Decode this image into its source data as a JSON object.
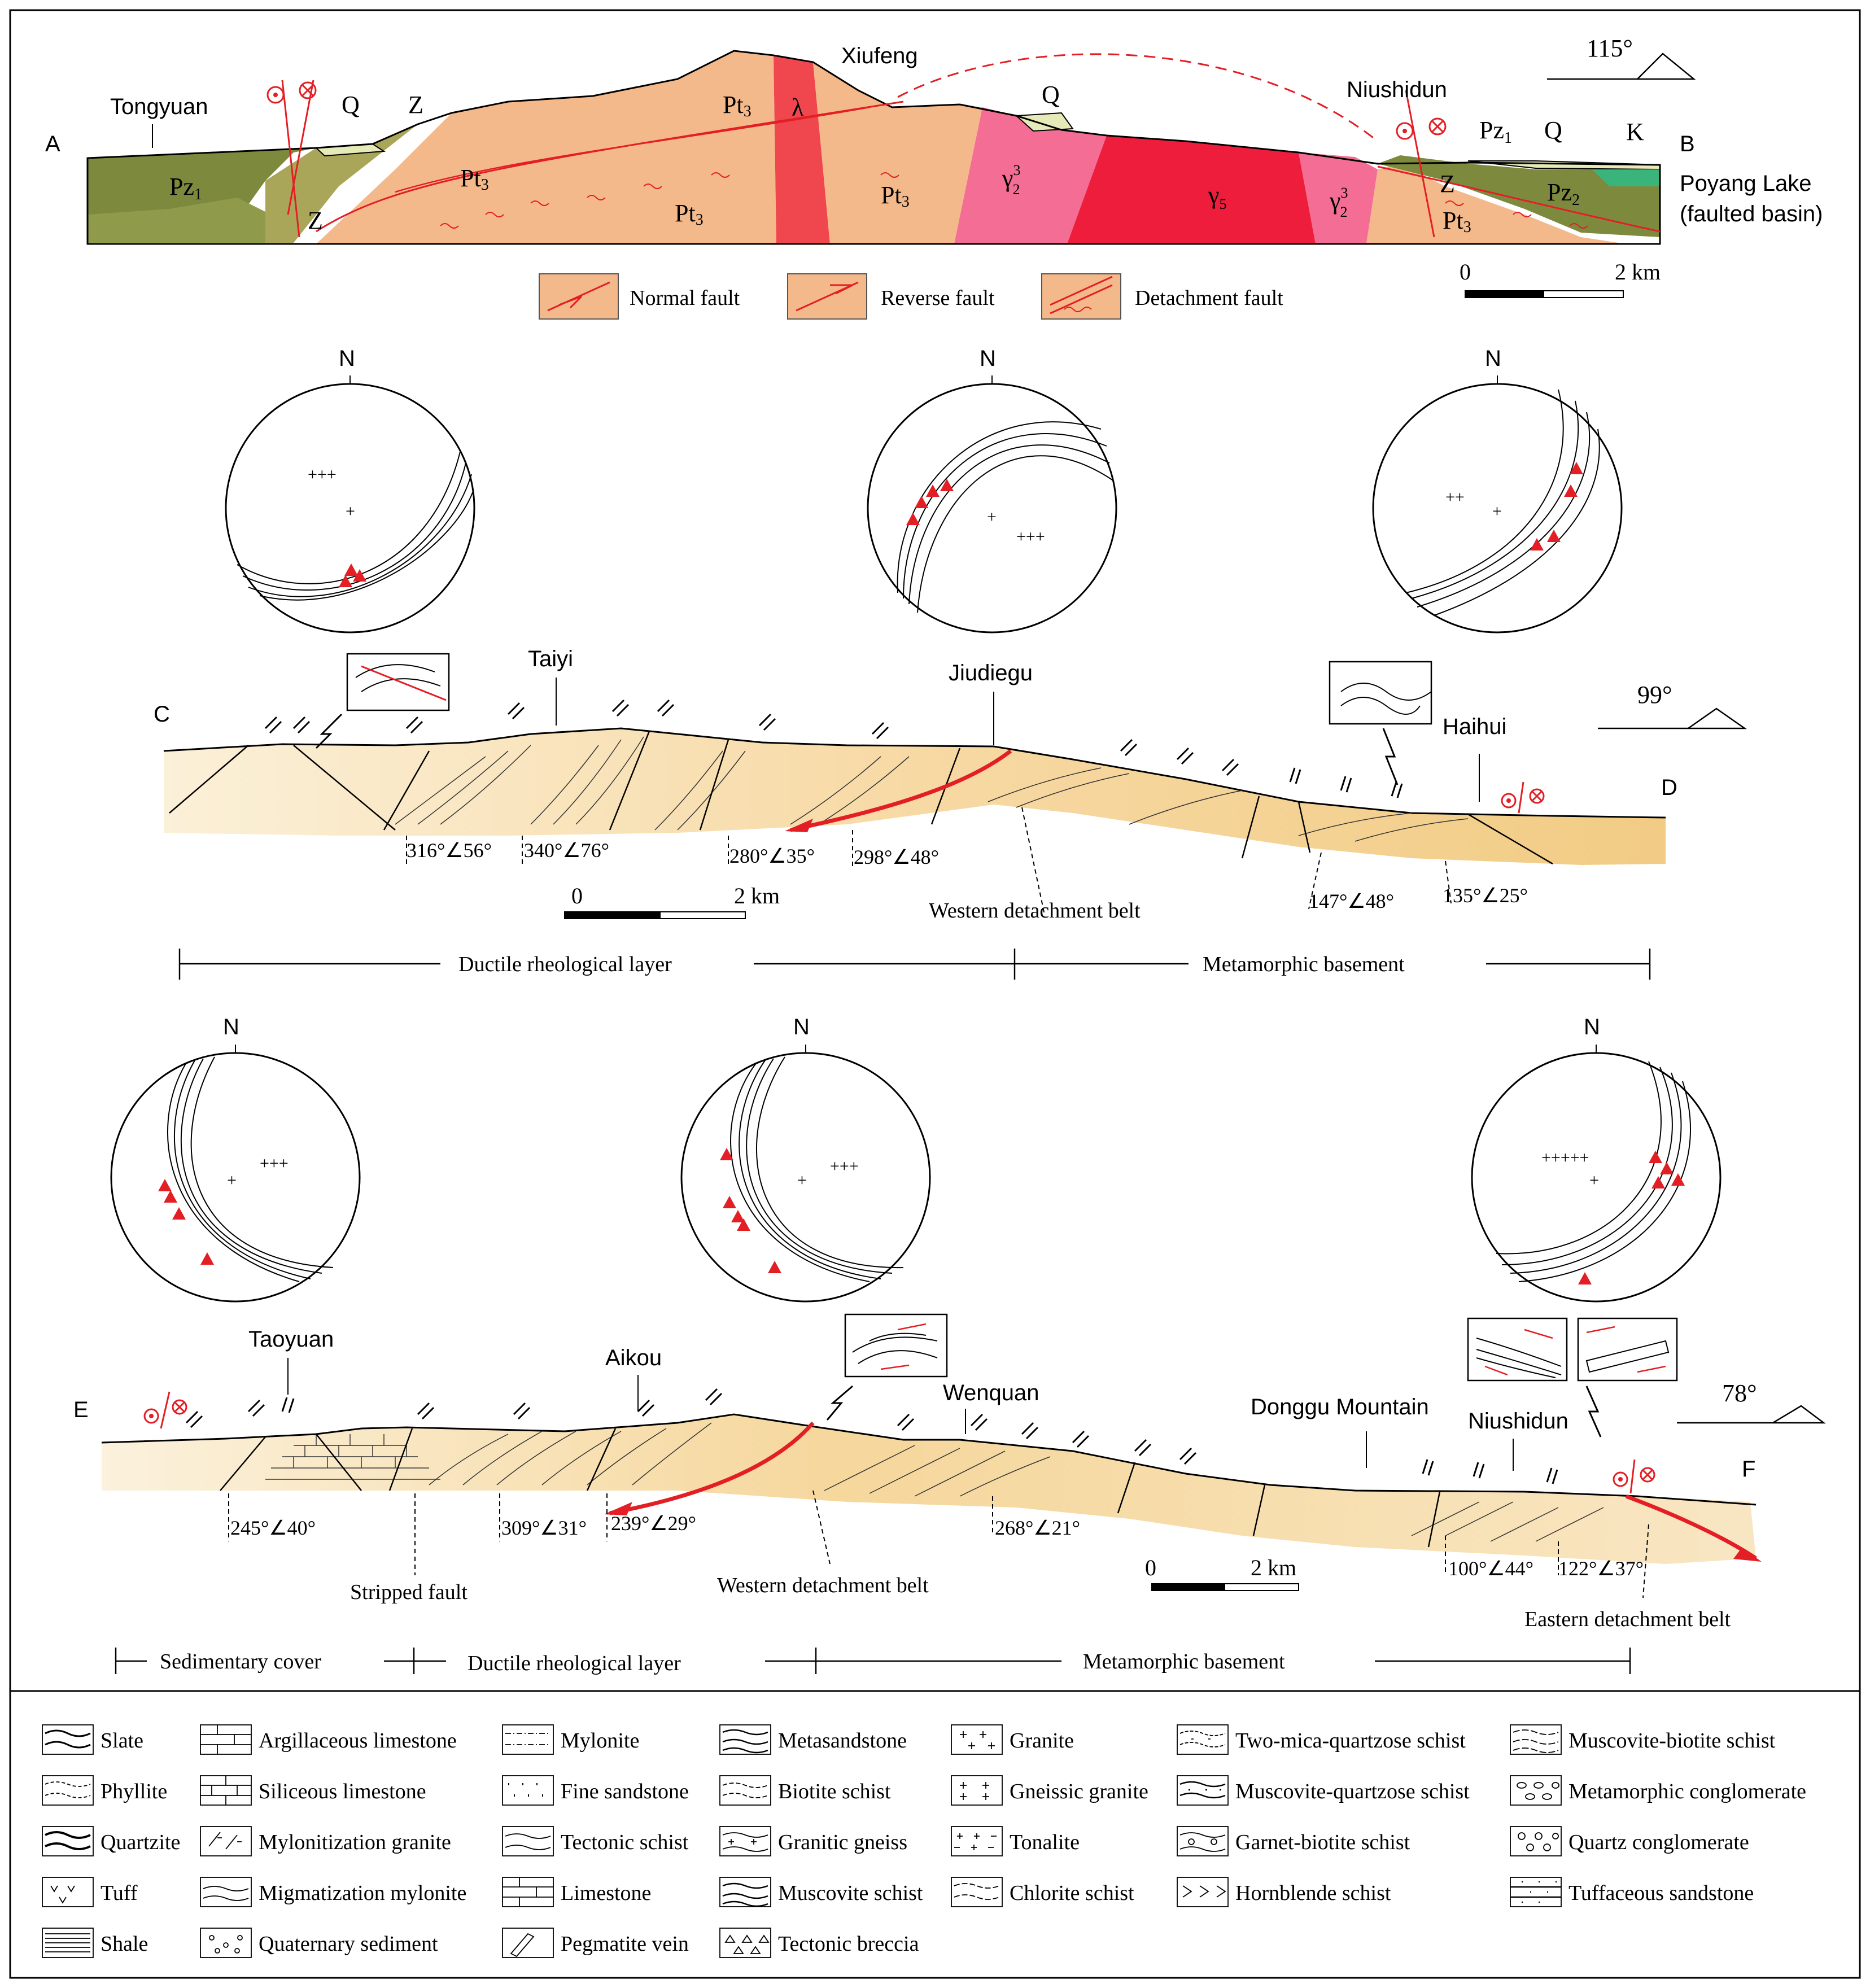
{
  "section_ab": {
    "end_left": "A",
    "end_right": "B",
    "places": [
      "Tongyuan",
      "Xiufeng",
      "Niushidun"
    ],
    "lake": [
      "Poyang Lake",
      "(faulted basin)"
    ],
    "units": {
      "pz1": "Pz",
      "pz1_sub": "1",
      "pz2_sub": "2",
      "z": "Z",
      "q": "Q",
      "pt": "Pt",
      "pt_sub": "3",
      "lambda": "λ",
      "gamma": "γ",
      "gamma_sup": "3",
      "gamma_sub2": "2",
      "gamma_sub5": "5",
      "k": "K"
    },
    "azimuth": "115°",
    "scale": {
      "zero": "0",
      "end": "2 km"
    },
    "fault_legend": [
      "Normal fault",
      "Reverse fault",
      "Detachment fault"
    ],
    "colors": {
      "pz": "#7d8a3e",
      "pt": "#f4b98b",
      "pink": "#f46d95",
      "red": "#ee1d3b",
      "lambda": "#f0474f",
      "q": "#e6eab8",
      "k": "#3ab47a",
      "fault": "#e31e24"
    }
  },
  "section_cd": {
    "end_left": "C",
    "end_right": "D",
    "places": [
      "Taiyi",
      "Jiudiegu",
      "Haihui"
    ],
    "attitudes": [
      "316°∠56°",
      "340°∠76°",
      "280°∠35°",
      "298°∠48°",
      "147°∠48°",
      "135°∠25°"
    ],
    "belt": "Western detachment belt",
    "azimuth": "99°",
    "scale": {
      "zero": "0",
      "end": "2 km"
    },
    "zones": [
      "Ductile rheological layer",
      "Metamorphic basement"
    ],
    "north": "N"
  },
  "section_ef": {
    "end_left": "E",
    "end_right": "F",
    "places": [
      "Taoyuan",
      "Aikou",
      "Wenquan",
      "Donggu Mountain",
      "Niushidun"
    ],
    "attitudes": [
      "245°∠40°",
      "309°∠31°",
      "239°∠29°",
      "268°∠21°",
      "100°∠44°",
      "122°∠37°"
    ],
    "belts": [
      "Stripped fault",
      "Western detachment belt",
      "Eastern detachment belt"
    ],
    "azimuth": "78°",
    "scale": {
      "zero": "0",
      "end": "2 km"
    },
    "zones": [
      "Sedimentary cover",
      "Ductile rheological layer",
      "Metamorphic basement"
    ],
    "north": "N"
  },
  "legend": {
    "col1": [
      "Slate",
      "Phyllite",
      "Quartzite",
      "Tuff",
      "Shale"
    ],
    "col2": [
      "Argillaceous limestone",
      "Siliceous limestone",
      "Mylonitization granite",
      "Migmatization mylonite",
      "Quaternary sediment"
    ],
    "col3": [
      "Mylonite",
      "Fine sandstone",
      "Tectonic schist",
      "Limestone",
      "Pegmatite vein"
    ],
    "col4": [
      "Metasandstone",
      "Biotite schist",
      "Granitic gneiss",
      "Muscovite schist",
      "Tectonic breccia"
    ],
    "col5": [
      "Granite",
      "Gneissic granite",
      "Tonalite",
      "Chlorite schist"
    ],
    "col6": [
      "Two-mica-quartzose schist",
      "Muscovite-quartzose schist",
      "Garnet-biotite schist",
      "Hornblende schist"
    ],
    "col7": [
      "Muscovite-biotite schist",
      "Metamorphic conglomerate",
      "Quartz conglomerate",
      "Tuffaceous sandstone"
    ]
  }
}
